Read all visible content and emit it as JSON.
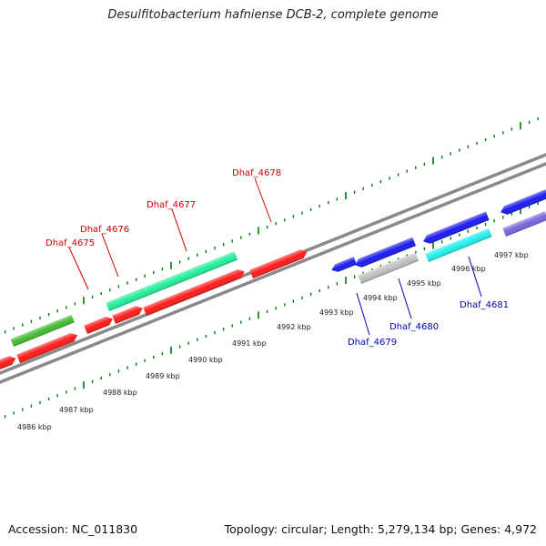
{
  "title": "Desulfitobacterium hafniense DCB-2, complete genome",
  "accession": "Accession: NC_011830",
  "summary": "Topology: circular; Length: 5,279,134 bp; Genes: 4,972",
  "colors": {
    "forward_label": "#d00000",
    "reverse_label": "#0000bb",
    "tick": "#007700",
    "backbone": "#808080"
  },
  "kbp_labels": [
    "4986 kbp",
    "4987 kbp",
    "4988 kbp",
    "4989 kbp",
    "4990 kbp",
    "4991 kbp",
    "4992 kbp",
    "4993 kbp",
    "4994 kbp",
    "4995 kbp",
    "4996 kbp",
    "4997 kbp"
  ],
  "gene_labels": [
    {
      "name": "Dhaf_4675",
      "strand": "forward"
    },
    {
      "name": "Dhaf_4676",
      "strand": "forward"
    },
    {
      "name": "Dhaf_4677",
      "strand": "forward"
    },
    {
      "name": "Dhaf_4678",
      "strand": "forward"
    },
    {
      "name": "Dhaf_4679",
      "strand": "reverse"
    },
    {
      "name": "Dhaf_4680",
      "strand": "reverse"
    },
    {
      "name": "Dhaf_4681",
      "strand": "reverse"
    }
  ],
  "features": [
    {
      "id": "f1",
      "color": "#44bb33",
      "dir": "none"
    },
    {
      "id": "f2",
      "color": "#ff1a1a",
      "dir": "right"
    },
    {
      "id": "f3",
      "color": "#ff1a1a",
      "dir": "right"
    },
    {
      "id": "f4",
      "color": "#ff1a1a",
      "dir": "right"
    },
    {
      "id": "f5",
      "color": "#ff1a1a",
      "dir": "right"
    },
    {
      "id": "f6",
      "color": "#ff1a1a",
      "dir": "right"
    },
    {
      "id": "f7",
      "color": "#22ee99",
      "dir": "none"
    },
    {
      "id": "f8",
      "color": "#ff1a1a",
      "dir": "right"
    },
    {
      "id": "f9",
      "color": "#1a1aee",
      "dir": "left"
    },
    {
      "id": "f10",
      "color": "#1a1aee",
      "dir": "left"
    },
    {
      "id": "f11",
      "color": "#1a1aee",
      "dir": "left"
    },
    {
      "id": "f12",
      "color": "#1a1aee",
      "dir": "left"
    },
    {
      "id": "f13",
      "color": "#c0c0c0",
      "dir": "none"
    },
    {
      "id": "f14",
      "color": "#22eeee",
      "dir": "none"
    },
    {
      "id": "f15",
      "color": "#7766dd",
      "dir": "none"
    }
  ]
}
